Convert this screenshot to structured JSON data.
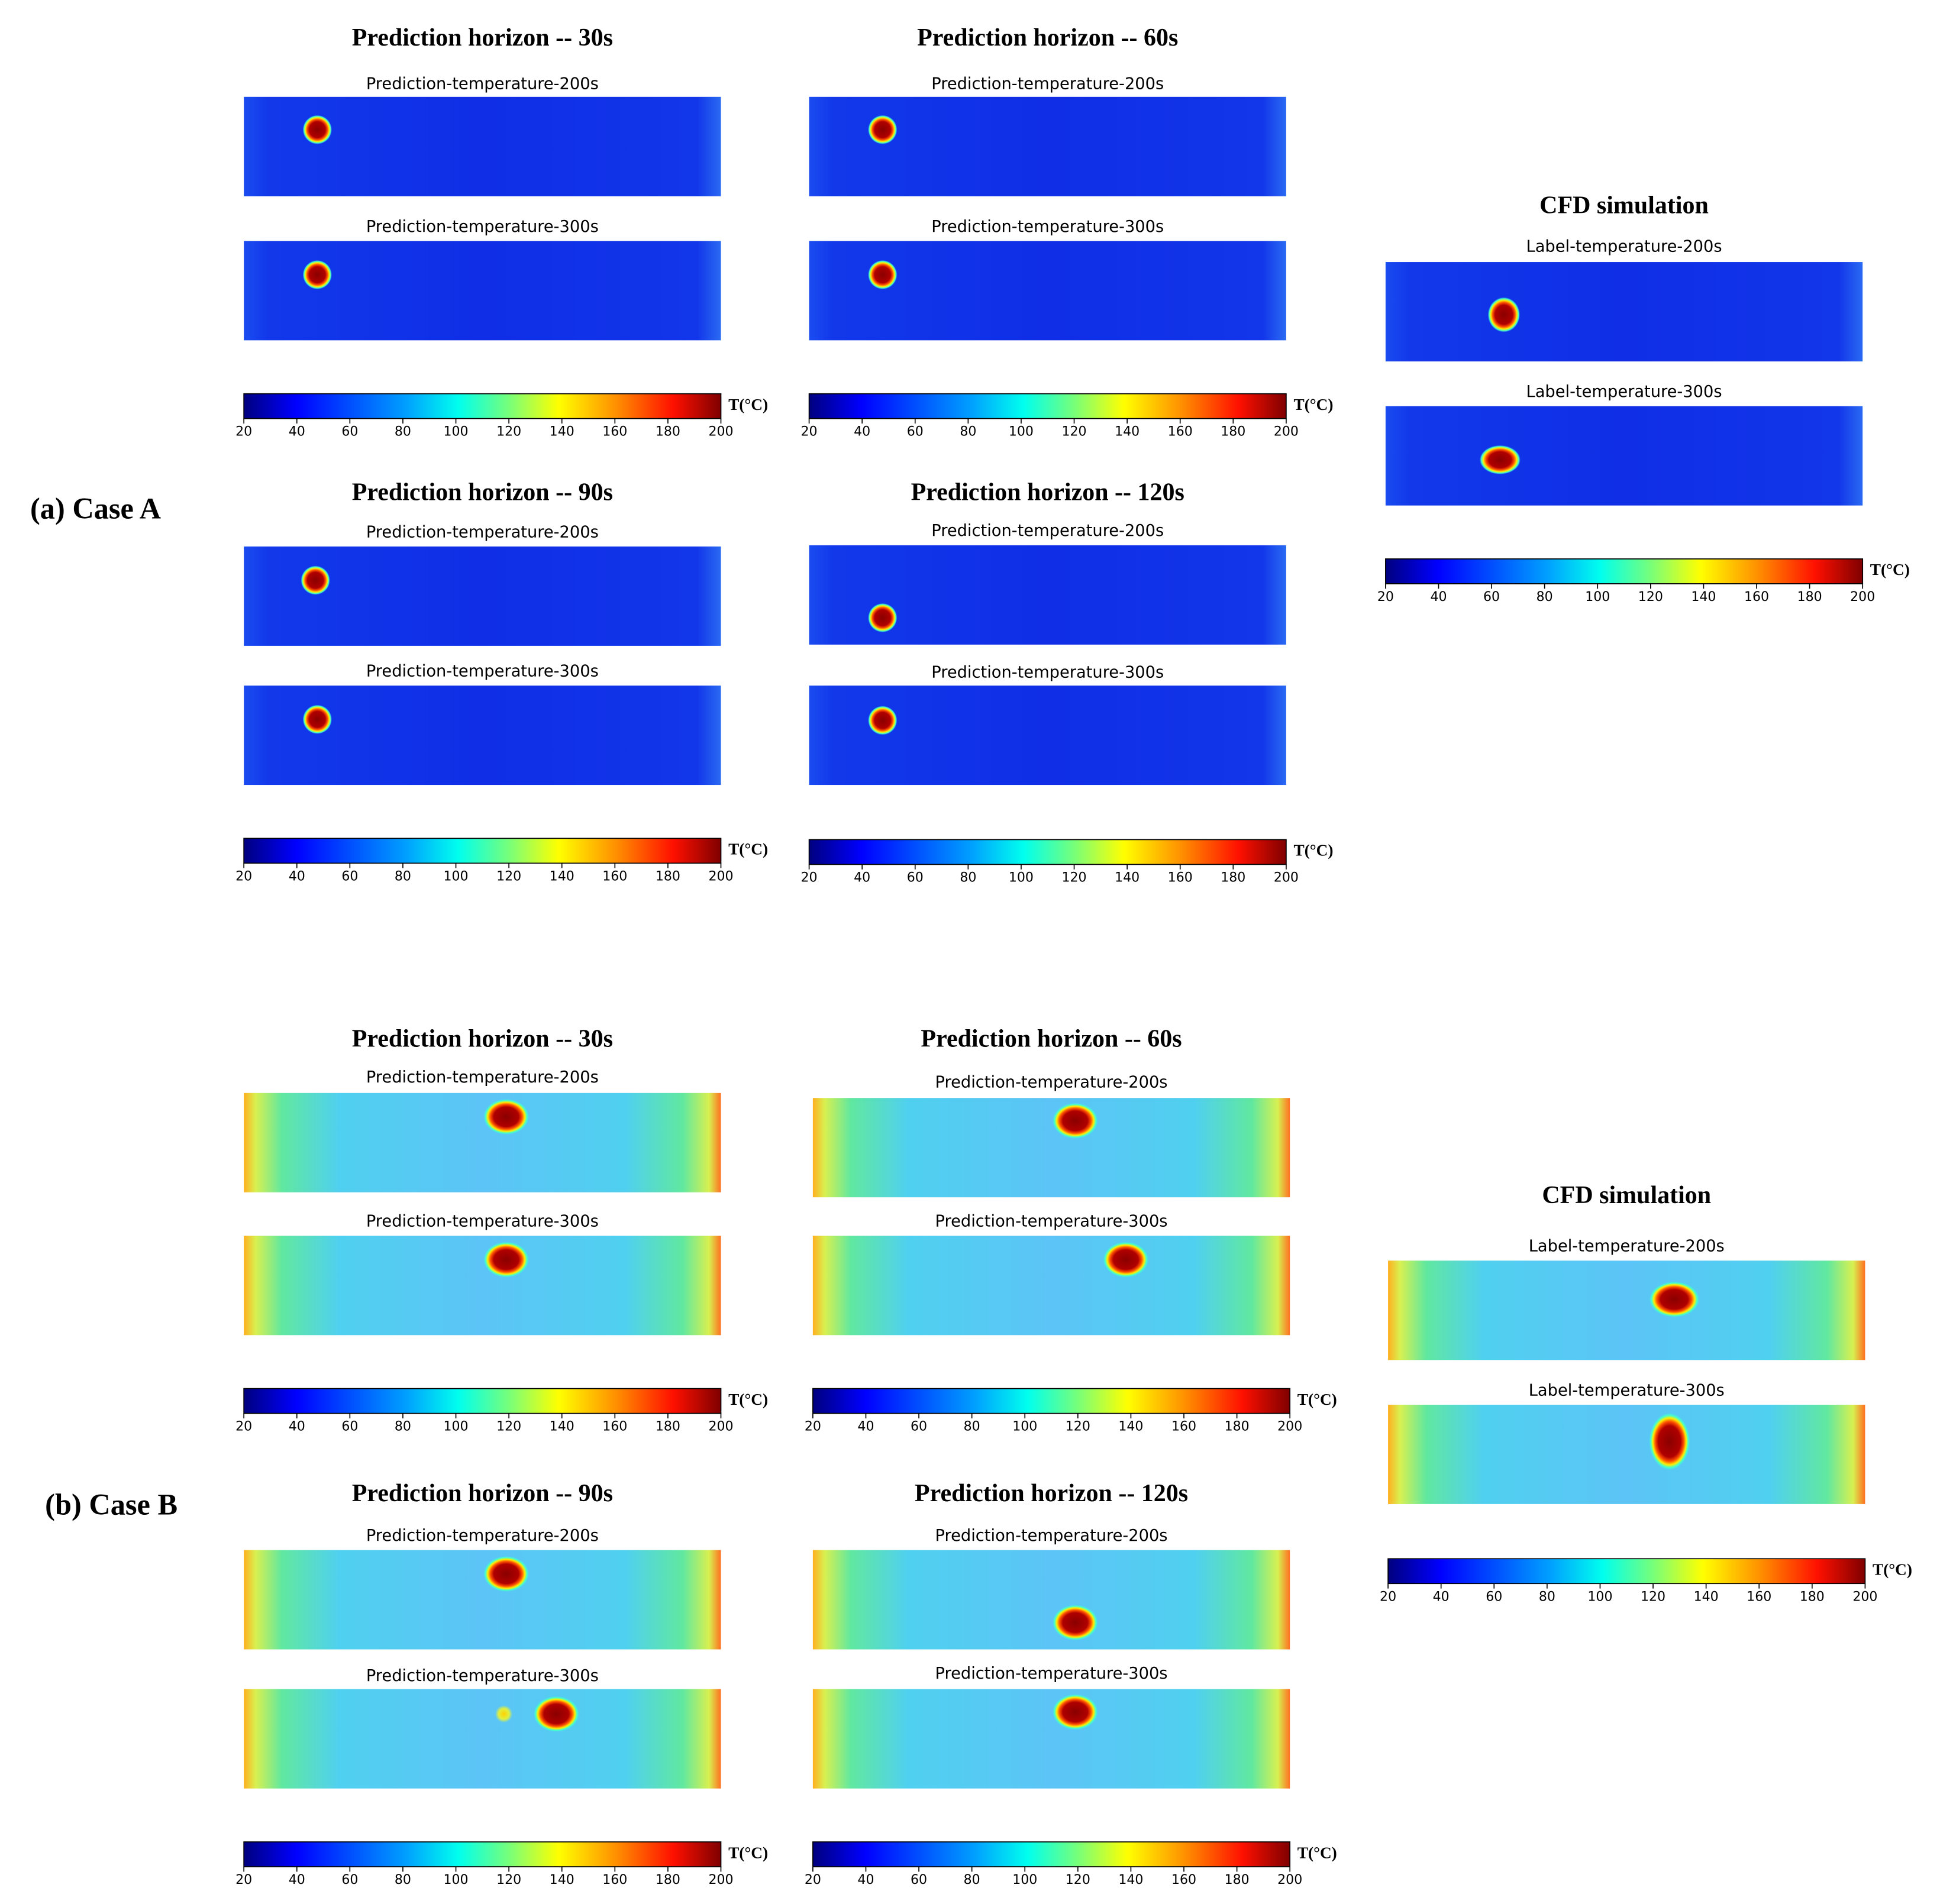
{
  "figure": {
    "colorbar": {
      "lim": [
        20,
        200
      ],
      "ticks": [
        20,
        40,
        60,
        80,
        100,
        120,
        140,
        160,
        180,
        200
      ],
      "unit": "T(°C)"
    },
    "cases": [
      {
        "label": "(a) Case A",
        "panels": [
          {
            "title": "Prediction horizon -- 30s",
            "subplots": [
              "Prediction-temperature-200s",
              "Prediction-temperature-300s"
            ]
          },
          {
            "title": "Prediction horizon -- 60s",
            "subplots": [
              "Prediction-temperature-200s",
              "Prediction-temperature-300s"
            ]
          },
          {
            "title": "Prediction horizon -- 90s",
            "subplots": [
              "Prediction-temperature-200s",
              "Prediction-temperature-300s"
            ]
          },
          {
            "title": "Prediction horizon -- 120s",
            "subplots": [
              "Prediction-temperature-200s",
              "Prediction-temperature-300s"
            ]
          }
        ],
        "cfd": {
          "title": "CFD simulation",
          "subplots": [
            "Label-temperature-200s",
            "Label-temperature-300s"
          ]
        }
      },
      {
        "label": "(b) Case B",
        "panels": [
          {
            "title": "Prediction horizon -- 30s",
            "subplots": [
              "Prediction-temperature-200s",
              "Prediction-temperature-300s"
            ]
          },
          {
            "title": "Prediction horizon -- 60s",
            "subplots": [
              "Prediction-temperature-200s",
              "Prediction-temperature-300s"
            ]
          },
          {
            "title": "Prediction horizon -- 90s",
            "subplots": [
              "Prediction-temperature-200s",
              "Prediction-temperature-300s"
            ]
          },
          {
            "title": "Prediction horizon -- 120s",
            "subplots": [
              "Prediction-temperature-200s",
              "Prediction-temperature-300s"
            ]
          }
        ],
        "cfd": {
          "title": "CFD simulation",
          "subplots": [
            "Label-temperature-200s",
            "Label-temperature-300s"
          ]
        }
      }
    ]
  }
}
